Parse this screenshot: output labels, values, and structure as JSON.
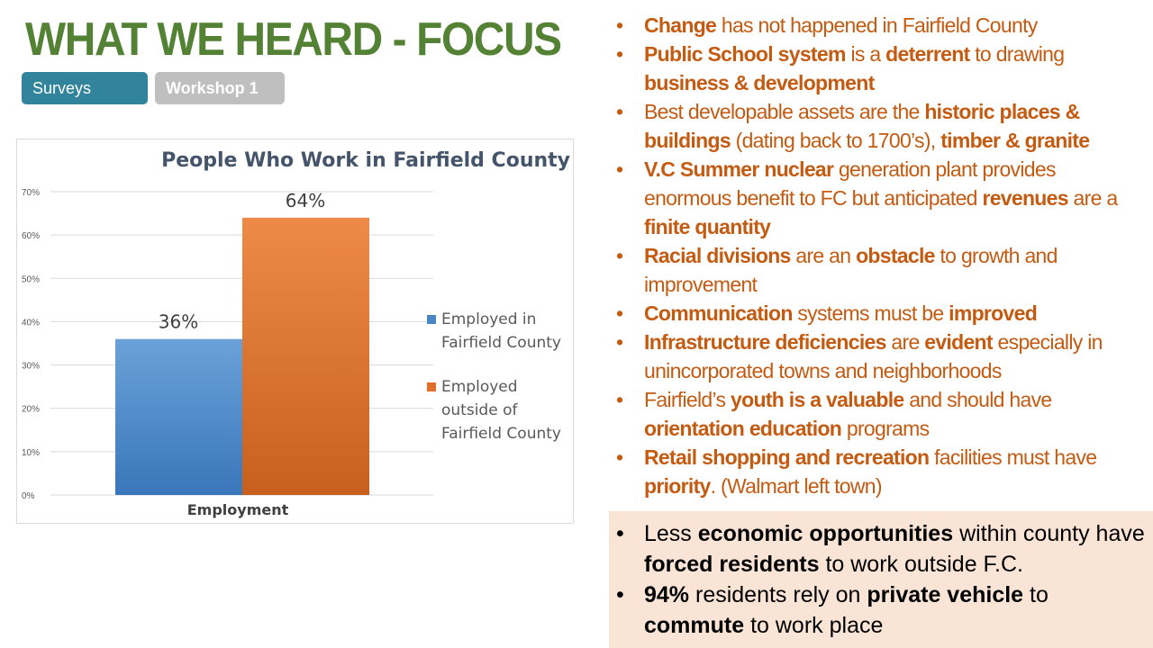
{
  "title": "WHAT WE HEARD - FOCUS",
  "tabs": [
    {
      "label": "Surveys",
      "color": "#31849b"
    },
    {
      "label": "Workshop 1",
      "color": "#bfbfbf"
    }
  ],
  "chart_data": {
    "type": "bar",
    "title": "People Who Work in Fairfield County",
    "categories": [
      "Employment"
    ],
    "xlabel": "Employment",
    "ylim": [
      0,
      70
    ],
    "yticks": [
      "0%",
      "10%",
      "20%",
      "30%",
      "40%",
      "50%",
      "60%",
      "70%"
    ],
    "grid": true,
    "legend_position": "right",
    "series": [
      {
        "name": "Employed in Fairfield County",
        "values": [
          36
        ],
        "label": "36%",
        "color": "#4a86c5"
      },
      {
        "name": "Employed outside of Fairfield County",
        "values": [
          64
        ],
        "label": "64%",
        "color": "#e2702a"
      }
    ]
  },
  "bullets": [
    [
      {
        "t": "Change",
        "b": 1
      },
      {
        "t": " has not happened in Fairfield County"
      }
    ],
    [
      {
        "t": "Public School system",
        "b": 1
      },
      {
        "t": " is a "
      },
      {
        "t": "deterrent",
        "b": 1
      },
      {
        "t": " to drawing "
      },
      {
        "t": "business & development",
        "b": 1
      }
    ],
    [
      {
        "t": "Best developable assets are the "
      },
      {
        "t": "historic places & buildings",
        "b": 1
      },
      {
        "t": " (dating back to 1700’s), "
      },
      {
        "t": "timber & granite",
        "b": 1
      }
    ],
    [
      {
        "t": "V.C Summer nuclear",
        "b": 1
      },
      {
        "t": " generation plant provides enormous benefit to FC but anticipated "
      },
      {
        "t": "revenues",
        "b": 1
      },
      {
        "t": " are a "
      },
      {
        "t": "finite quantity",
        "b": 1
      }
    ],
    [
      {
        "t": "Racial divisions",
        "b": 1
      },
      {
        "t": " are an "
      },
      {
        "t": "obstacle",
        "b": 1
      },
      {
        "t": " to growth and improvement"
      }
    ],
    [
      {
        "t": "Communication",
        "b": 1
      },
      {
        "t": " systems must be "
      },
      {
        "t": "improved",
        "b": 1
      }
    ],
    [
      {
        "t": "Infrastructure deficiencies",
        "b": 1
      },
      {
        "t": " are "
      },
      {
        "t": "evident",
        "b": 1
      },
      {
        "t": " especially in unincorporated towns and neighborhoods"
      }
    ],
    [
      {
        "t": "Fairfield’s "
      },
      {
        "t": "youth is a valuable",
        "b": 1
      },
      {
        "t": " and should have "
      },
      {
        "t": "orientation education",
        "b": 1
      },
      {
        "t": " programs"
      }
    ],
    [
      {
        "t": "Retail shopping and recreation",
        "b": 1
      },
      {
        "t": " facilities must have "
      },
      {
        "t": "priority",
        "b": 1
      },
      {
        "t": ". (Walmart left town)"
      }
    ]
  ],
  "highlight_bullets": [
    [
      {
        "t": "Less "
      },
      {
        "t": "economic opportunities",
        "b": 1
      },
      {
        "t": " within county have "
      },
      {
        "t": "forced residents",
        "b": 1
      },
      {
        "t": " to work outside F.C."
      }
    ],
    [
      {
        "t": "94%",
        "b": 1
      },
      {
        "t": " residents rely on "
      },
      {
        "t": "private vehicle",
        "b": 1
      },
      {
        "t": " to "
      },
      {
        "t": "commute",
        "b": 1
      },
      {
        "t": " to work place"
      }
    ]
  ]
}
